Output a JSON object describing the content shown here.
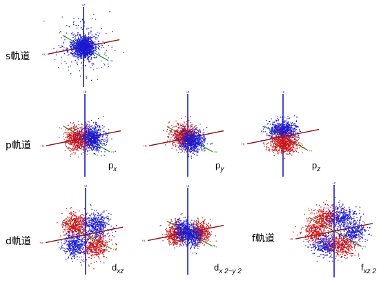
{
  "colors": {
    "positive_lobe": "#1a1ad0",
    "negative_lobe": "#cc1414",
    "x_axis": "#8b1010",
    "y_axis": "#2a8a22",
    "z_axis": "#1a1ac8"
  },
  "axis_labels": {
    "x": "+X",
    "y": "+Y",
    "z": "+Z"
  },
  "row_labels": {
    "s": "s軌道",
    "p": "p軌道",
    "d": "d軌道",
    "f": "f軌道"
  },
  "orbitals": [
    {
      "id": "s",
      "type": "s",
      "label_main": "",
      "label_sub": ""
    },
    {
      "id": "px",
      "type": "px",
      "label_main": "p",
      "label_sub": "x"
    },
    {
      "id": "py",
      "type": "py",
      "label_main": "p",
      "label_sub": "y"
    },
    {
      "id": "pz",
      "type": "pz",
      "label_main": "p",
      "label_sub": "z"
    },
    {
      "id": "dxz",
      "type": "dxz",
      "label_main": "d",
      "label_sub": "xz"
    },
    {
      "id": "dx2y2",
      "type": "dx2",
      "label_main": "d",
      "label_sub": "x 2−y 2"
    },
    {
      "id": "fxz2",
      "type": "fxz",
      "label_main": "f",
      "label_sub": "xz 2"
    }
  ]
}
